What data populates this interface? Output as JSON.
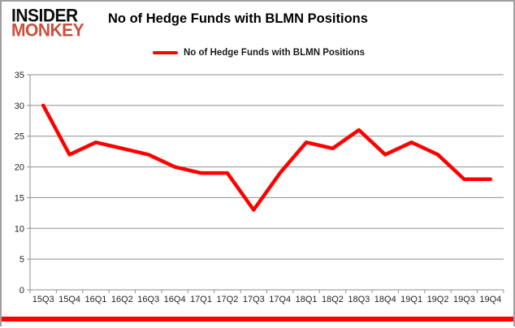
{
  "logo": {
    "line1": "INSIDER",
    "line2": "MONKEY"
  },
  "header": {
    "title": "No of Hedge Funds with BLMN Positions"
  },
  "legend": {
    "label": "No of Hedge Funds with BLMN Positions"
  },
  "colors": {
    "series_line": "#fe0000",
    "logo_primary": "#0d0d0d",
    "logo_accent": "#c9503c",
    "gridline": "#8f8f8f",
    "axis": "#8f8f8f",
    "tick_label": "#1f1f1f",
    "accent_bar": "#fe0000",
    "frame_border": "#9f9f9f"
  },
  "chart_data": {
    "type": "line",
    "title": "No of Hedge Funds with BLMN Positions",
    "categories": [
      "15Q3",
      "15Q4",
      "16Q1",
      "16Q2",
      "16Q3",
      "16Q4",
      "17Q1",
      "17Q2",
      "17Q3",
      "17Q4",
      "18Q1",
      "18Q2",
      "18Q3",
      "18Q4",
      "19Q1",
      "19Q2",
      "19Q3",
      "19Q4"
    ],
    "series": [
      {
        "name": "No of Hedge Funds with BLMN Positions",
        "color": "#fe0000",
        "values": [
          30,
          22,
          24,
          23,
          22,
          20,
          19,
          19,
          13,
          19,
          24,
          23,
          26,
          22,
          24,
          22,
          18,
          18
        ]
      }
    ],
    "xlabel": "",
    "ylabel": "",
    "ylim": [
      0,
      35
    ],
    "yticks": [
      0,
      5,
      10,
      15,
      20,
      25,
      30,
      35
    ],
    "grid": true,
    "legend_position": "top"
  }
}
